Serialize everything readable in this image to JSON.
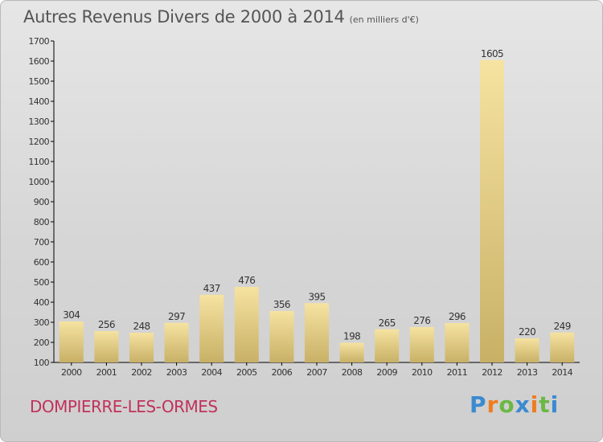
{
  "header": {
    "title": "Autres Revenus Divers de 2000 à 2014",
    "unit": "(en milliers d'€)"
  },
  "footer": {
    "commune": "DOMPIERRE-LES-ORMES",
    "logo": "Proxiti"
  },
  "colors": {
    "bar_top": "#f6e3a1",
    "bar_bottom": "#c8b066",
    "commune": "#c0325a",
    "logo_letters": [
      "#3a8ad0",
      "#f07c1f",
      "#6bb844",
      "#3a8ad0",
      "#f07c1f",
      "#6bb844",
      "#3a8ad0"
    ]
  },
  "chart_data": {
    "type": "bar",
    "categories": [
      "2000",
      "2001",
      "2002",
      "2003",
      "2004",
      "2005",
      "2006",
      "2007",
      "2008",
      "2009",
      "2010",
      "2011",
      "2012",
      "2013",
      "2014"
    ],
    "values": [
      304,
      256,
      248,
      297,
      437,
      476,
      356,
      395,
      198,
      265,
      276,
      296,
      1605,
      220,
      249
    ],
    "ylim": [
      100,
      1700
    ],
    "yticks": [
      100,
      200,
      300,
      400,
      500,
      600,
      700,
      800,
      900,
      1000,
      1100,
      1200,
      1300,
      1400,
      1500,
      1600,
      1700
    ],
    "grid": false,
    "legend": "none"
  }
}
